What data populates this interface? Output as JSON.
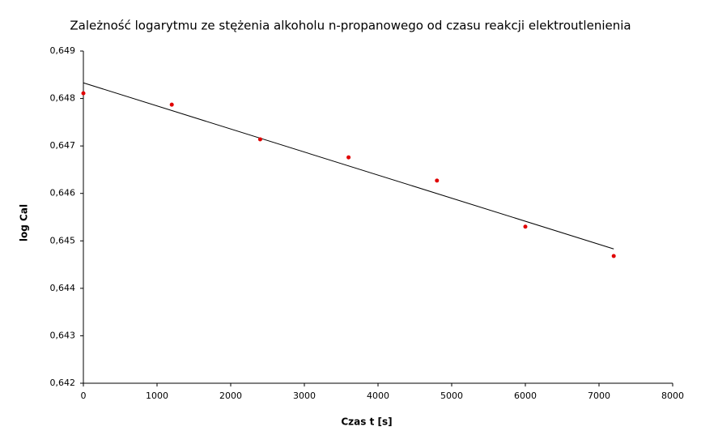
{
  "chart_data": {
    "type": "scatter",
    "title": "Zależność logarytmu ze stężenia alkoholu n-propanowego od czasu reakcji elektroutlenienia",
    "xlabel": "Czas t [s]",
    "ylabel": "log Cal",
    "x": [
      0,
      1200,
      2400,
      3600,
      4800,
      6000,
      7200
    ],
    "series": [
      {
        "color": "#e00000",
        "values": [
          0.64811,
          0.64787,
          0.64714,
          0.64676,
          0.64627,
          0.6453,
          0.64468
        ]
      }
    ],
    "trendline": {
      "color": "#000000",
      "x": [
        0,
        7200
      ],
      "values": [
        0.64833,
        0.64483
      ]
    },
    "xlim": [
      0,
      8000
    ],
    "xticks": [
      0,
      1000,
      2000,
      3000,
      4000,
      5000,
      6000,
      7000,
      8000
    ],
    "ylim": [
      0.642,
      0.649
    ],
    "yticks": [
      {
        "value": 0.642,
        "label": "0,642"
      },
      {
        "value": 0.643,
        "label": "0,643"
      },
      {
        "value": 0.644,
        "label": "0,644"
      },
      {
        "value": 0.645,
        "label": "0,645"
      },
      {
        "value": 0.646,
        "label": "0,646"
      },
      {
        "value": 0.647,
        "label": "0,647"
      },
      {
        "value": 0.648,
        "label": "0,648"
      },
      {
        "value": 0.649,
        "label": "0,649"
      }
    ],
    "grid": false
  }
}
